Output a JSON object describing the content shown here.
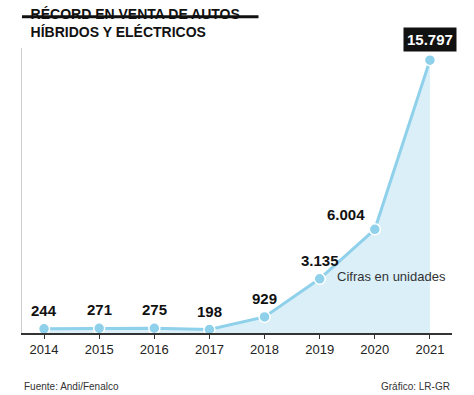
{
  "chart_data": {
    "type": "line",
    "title": "RÉCORD EN VENTA DE AUTOS\nHÍBRIDOS Y ELÉCTRICOS",
    "categories": [
      "2014",
      "2015",
      "2016",
      "2017",
      "2018",
      "2019",
      "2020",
      "2021"
    ],
    "values": [
      244,
      271,
      275,
      198,
      929,
      3135,
      6004,
      15797
    ],
    "value_labels": [
      "244",
      "271",
      "275",
      "198",
      "929",
      "3.135",
      "6.004",
      "15.797"
    ],
    "data_labels": true,
    "color": "#8fd0ea",
    "marker": "circle",
    "ylim": [
      0,
      16500
    ],
    "yticks": [],
    "tick_labels": "x",
    "grid": false,
    "annotations": [
      {
        "text": "Cifras en unidades"
      }
    ],
    "source": "Fuente: Andi/Fenalco",
    "credit": "Gráfico: LR-GR"
  }
}
